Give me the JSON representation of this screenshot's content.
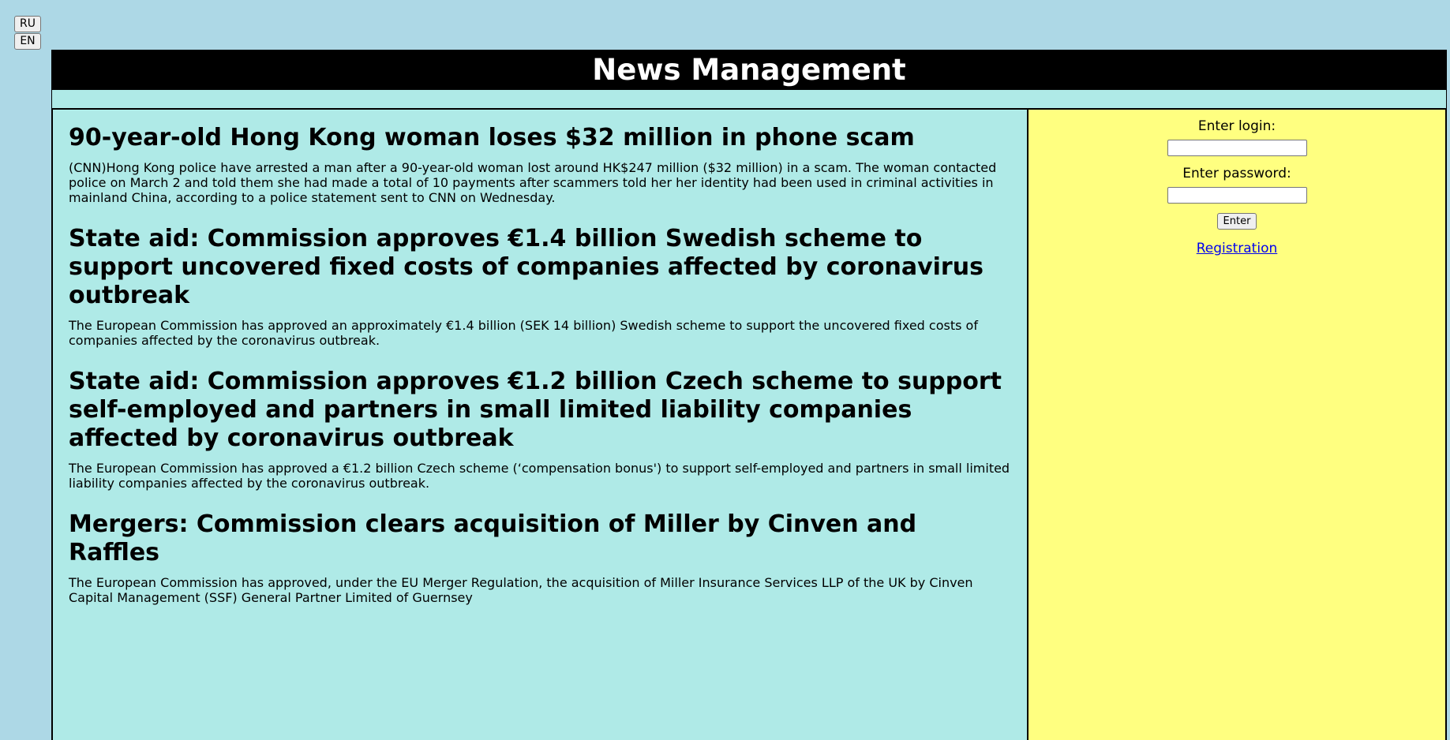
{
  "language_switch": {
    "ru_label": "RU",
    "en_label": "EN"
  },
  "header": {
    "title": "News Management"
  },
  "news": [
    {
      "title": "90-year-old Hong Kong woman loses $32 million in phone scam",
      "brief": "(CNN)Hong Kong police have arrested a man after a 90-year-old woman lost around HK$247 million ($32 million) in a scam. The woman contacted police on March 2 and told them she had made a total of 10 payments after scammers told her her identity had been used in criminal activities in mainland China, according to a police statement sent to CNN on Wednesday."
    },
    {
      "title": "State aid: Commission approves €1.4 billion Swedish scheme to support uncovered fixed costs of companies affected by coronavirus outbreak",
      "brief": "The European Commission has approved an approximately €1.4 billion (SEK 14 billion) Swedish scheme to support the uncovered fixed costs of companies affected by the coronavirus outbreak."
    },
    {
      "title": "State aid: Commission approves €1.2 billion Czech scheme to support self-employed and partners in small limited liability companies affected by coronavirus outbreak",
      "brief": "The European Commission has approved a €1.2 billion Czech scheme (‘compensation bonus') to support self-employed and partners in small limited liability companies affected by the coronavirus outbreak."
    },
    {
      "title": "Mergers: Commission clears acquisition of Miller by Cinven and Raffles",
      "brief": "The European Commission has approved, under the EU Merger Regulation, the acquisition of Miller Insurance Services LLP of the UK by Cinven Capital Management (SSF) General Partner Limited of Guernsey"
    }
  ],
  "login_form": {
    "login_label": "Enter login:",
    "login_value": "",
    "password_label": "Enter password:",
    "password_value": "",
    "enter_button": "Enter",
    "registration_link": "Registration"
  },
  "colors": {
    "page_background": "#add8e6",
    "header_background": "#000000",
    "header_text": "#ffffff",
    "news_background": "#afeae7",
    "sidebar_background": "#ffff80",
    "link": "#0000ee"
  }
}
